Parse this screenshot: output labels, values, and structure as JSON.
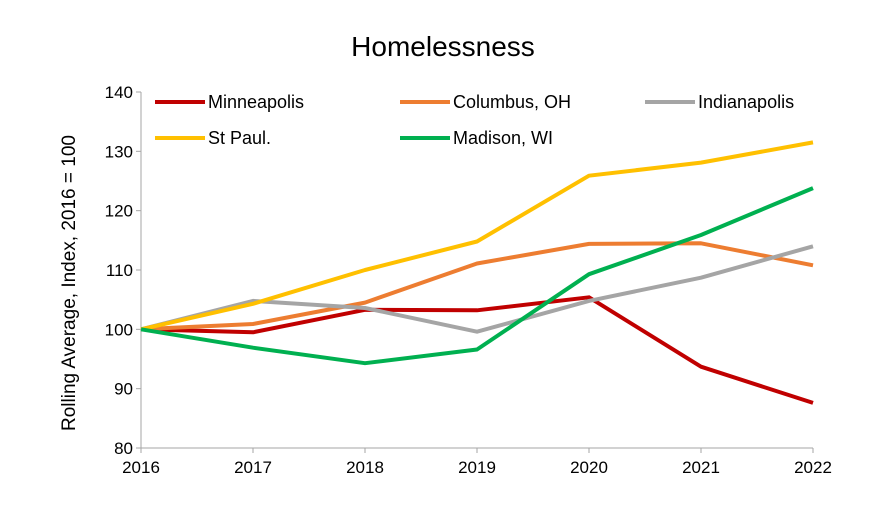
{
  "chart_data": {
    "type": "line",
    "title": "Homelessness",
    "xlabel": "",
    "ylabel": "Rolling Average, Index, 2016 = 100",
    "categories": [
      "2016",
      "2017",
      "2018",
      "2019",
      "2020",
      "2021",
      "2022"
    ],
    "ylim": [
      80,
      140
    ],
    "yticks": [
      80,
      90,
      100,
      110,
      120,
      130,
      140
    ],
    "grid": false,
    "legend_position": "top",
    "series": [
      {
        "name": "Minneapolis",
        "color": "#c00000",
        "values": [
          100,
          99.5,
          103.3,
          103.2,
          105.4,
          93.7,
          87.6
        ]
      },
      {
        "name": "Columbus, OH",
        "color": "#ed7d31",
        "values": [
          100,
          100.9,
          104.5,
          111.1,
          114.4,
          114.5,
          110.8
        ]
      },
      {
        "name": "Indianapolis",
        "color": "#a5a5a5",
        "values": [
          100,
          104.8,
          103.6,
          99.6,
          104.8,
          108.7,
          114
        ]
      },
      {
        "name": "St Paul.",
        "color": "#ffc000",
        "values": [
          100,
          104.3,
          110,
          114.8,
          125.9,
          128.1,
          131.5
        ]
      },
      {
        "name": "Madison, WI",
        "color": "#00b050",
        "values": [
          100,
          96.9,
          94.3,
          96.6,
          109.3,
          115.9,
          123.8
        ]
      }
    ]
  }
}
